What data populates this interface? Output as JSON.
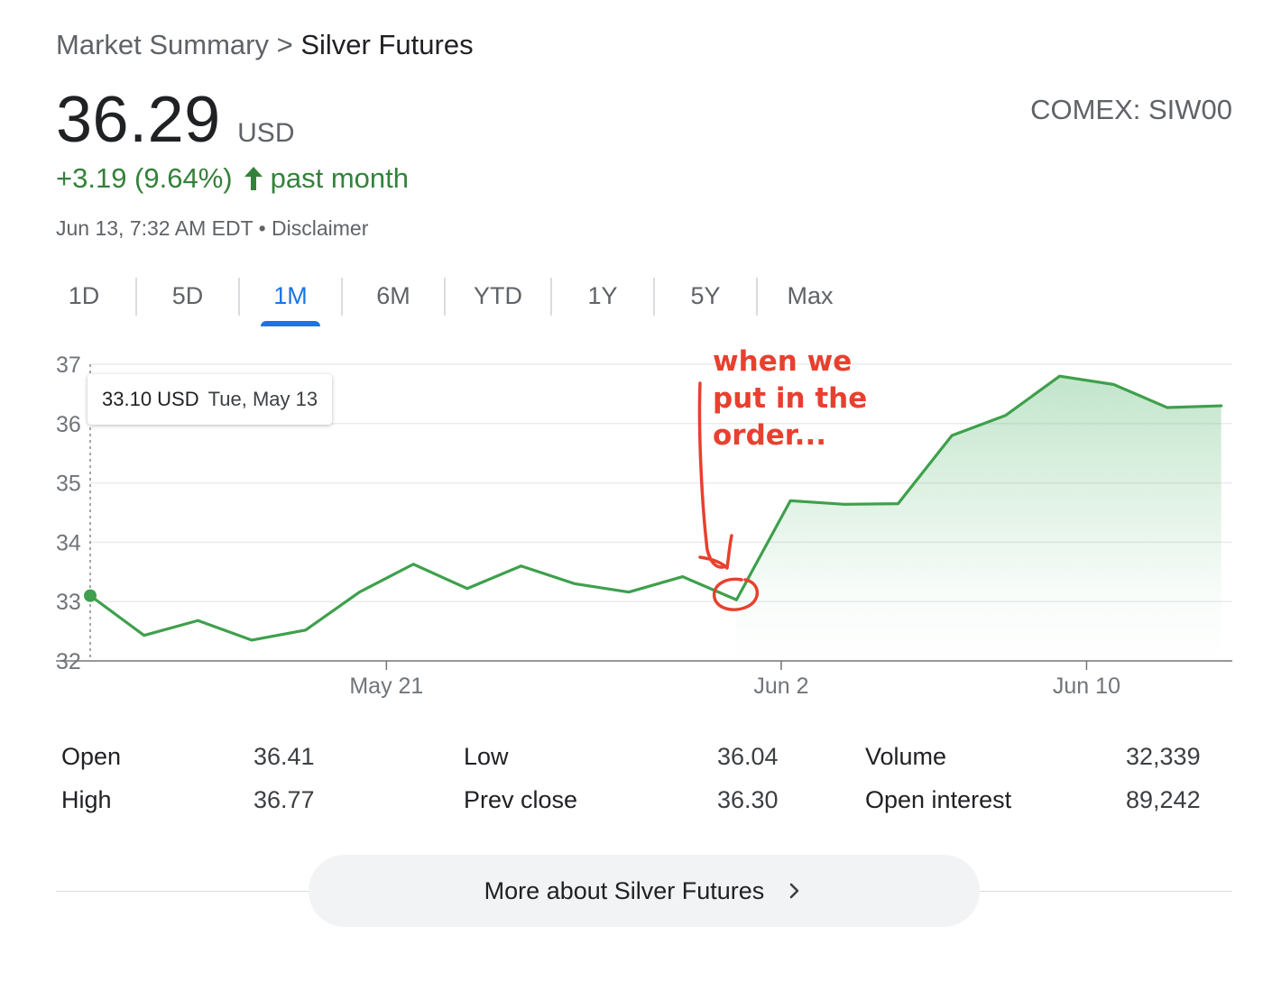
{
  "breadcrumb": {
    "parent": "Market Summary",
    "separator": ">",
    "current": "Silver Futures"
  },
  "quote": {
    "price": "36.29",
    "currency": "USD",
    "exchange": "COMEX: SIW00",
    "change": "+3.19 (9.64%)",
    "change_period": "past month",
    "timestamp": "Jun 13, 7:32 AM EDT",
    "separator": "•",
    "disclaimer": "Disclaimer"
  },
  "tabs": [
    {
      "label": "1D",
      "active": false
    },
    {
      "label": "5D",
      "active": false
    },
    {
      "label": "1M",
      "active": true
    },
    {
      "label": "6M",
      "active": false
    },
    {
      "label": "YTD",
      "active": false
    },
    {
      "label": "1Y",
      "active": false
    },
    {
      "label": "5Y",
      "active": false
    },
    {
      "label": "Max",
      "active": false
    }
  ],
  "tooltip": {
    "value": "33.10 USD",
    "date": "Tue, May 13"
  },
  "chart_data": {
    "type": "area",
    "ylim": [
      32,
      37
    ],
    "yticks": [
      "37",
      "36",
      "35",
      "34",
      "33",
      "32"
    ],
    "xtick_labels": [
      "May 21",
      "Jun 2",
      "Jun 10"
    ],
    "grid": true,
    "colors": {
      "line": "#3ea04c",
      "fill": "#34a853",
      "annotation": "#e8402f"
    },
    "series": [
      {
        "values": [
          33.1,
          32.43,
          32.68,
          32.35,
          32.52,
          33.16,
          33.63,
          33.22,
          33.6,
          33.3,
          33.16,
          33.42,
          33.03,
          34.7,
          34.64,
          34.65,
          35.8,
          36.14,
          36.8,
          36.66,
          36.27,
          36.3
        ]
      }
    ],
    "annotation": {
      "text": [
        "when we",
        "put in the",
        "order..."
      ]
    }
  },
  "stats": [
    {
      "label": "Open",
      "value": "36.41"
    },
    {
      "label": "High",
      "value": "36.77"
    },
    {
      "label": "Low",
      "value": "36.04"
    },
    {
      "label": "Prev close",
      "value": "36.30"
    },
    {
      "label": "Volume",
      "value": "32,339"
    },
    {
      "label": "Open interest",
      "value": "89,242"
    }
  ],
  "more_button": {
    "label": "More about Silver Futures"
  }
}
